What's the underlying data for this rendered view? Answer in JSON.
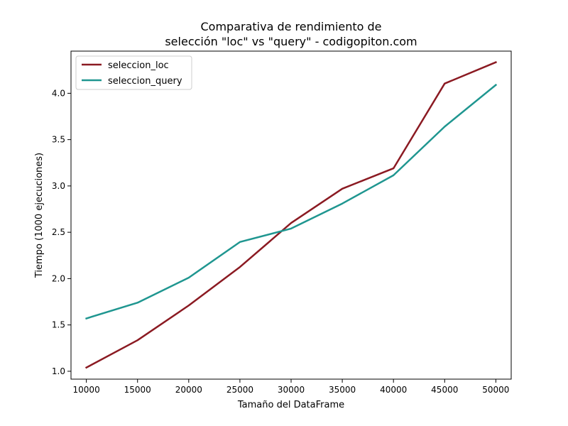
{
  "chart_data": {
    "type": "line",
    "title": [
      "Comparativa de rendimiento de",
      "selección \"loc\" vs \"query\" - codigopiton.com"
    ],
    "xlabel": "Tamaño del DataFrame",
    "ylabel": "Tiempo (1000 ejecuciones)",
    "x": [
      10000,
      15000,
      20000,
      25000,
      30000,
      35000,
      40000,
      45000,
      50000
    ],
    "x_ticks": [
      "10000",
      "15000",
      "20000",
      "25000",
      "30000",
      "35000",
      "40000",
      "45000",
      "50000"
    ],
    "y_ticks": [
      "1.0",
      "1.5",
      "2.0",
      "2.5",
      "3.0",
      "3.5",
      "4.0"
    ],
    "xlim": [
      8500,
      51500
    ],
    "ylim": [
      0.915,
      4.455
    ],
    "grid": false,
    "legend_position": "upper-left",
    "series": [
      {
        "name": "seleccion_loc",
        "color": "#8b1a22",
        "values": [
          1.04,
          1.335,
          1.71,
          2.125,
          2.6,
          2.97,
          3.19,
          4.105,
          4.335
        ]
      },
      {
        "name": "seleccion_query",
        "color": "#1f9690",
        "values": [
          1.57,
          1.74,
          2.01,
          2.395,
          2.54,
          2.81,
          3.115,
          3.64,
          4.09
        ]
      }
    ]
  }
}
